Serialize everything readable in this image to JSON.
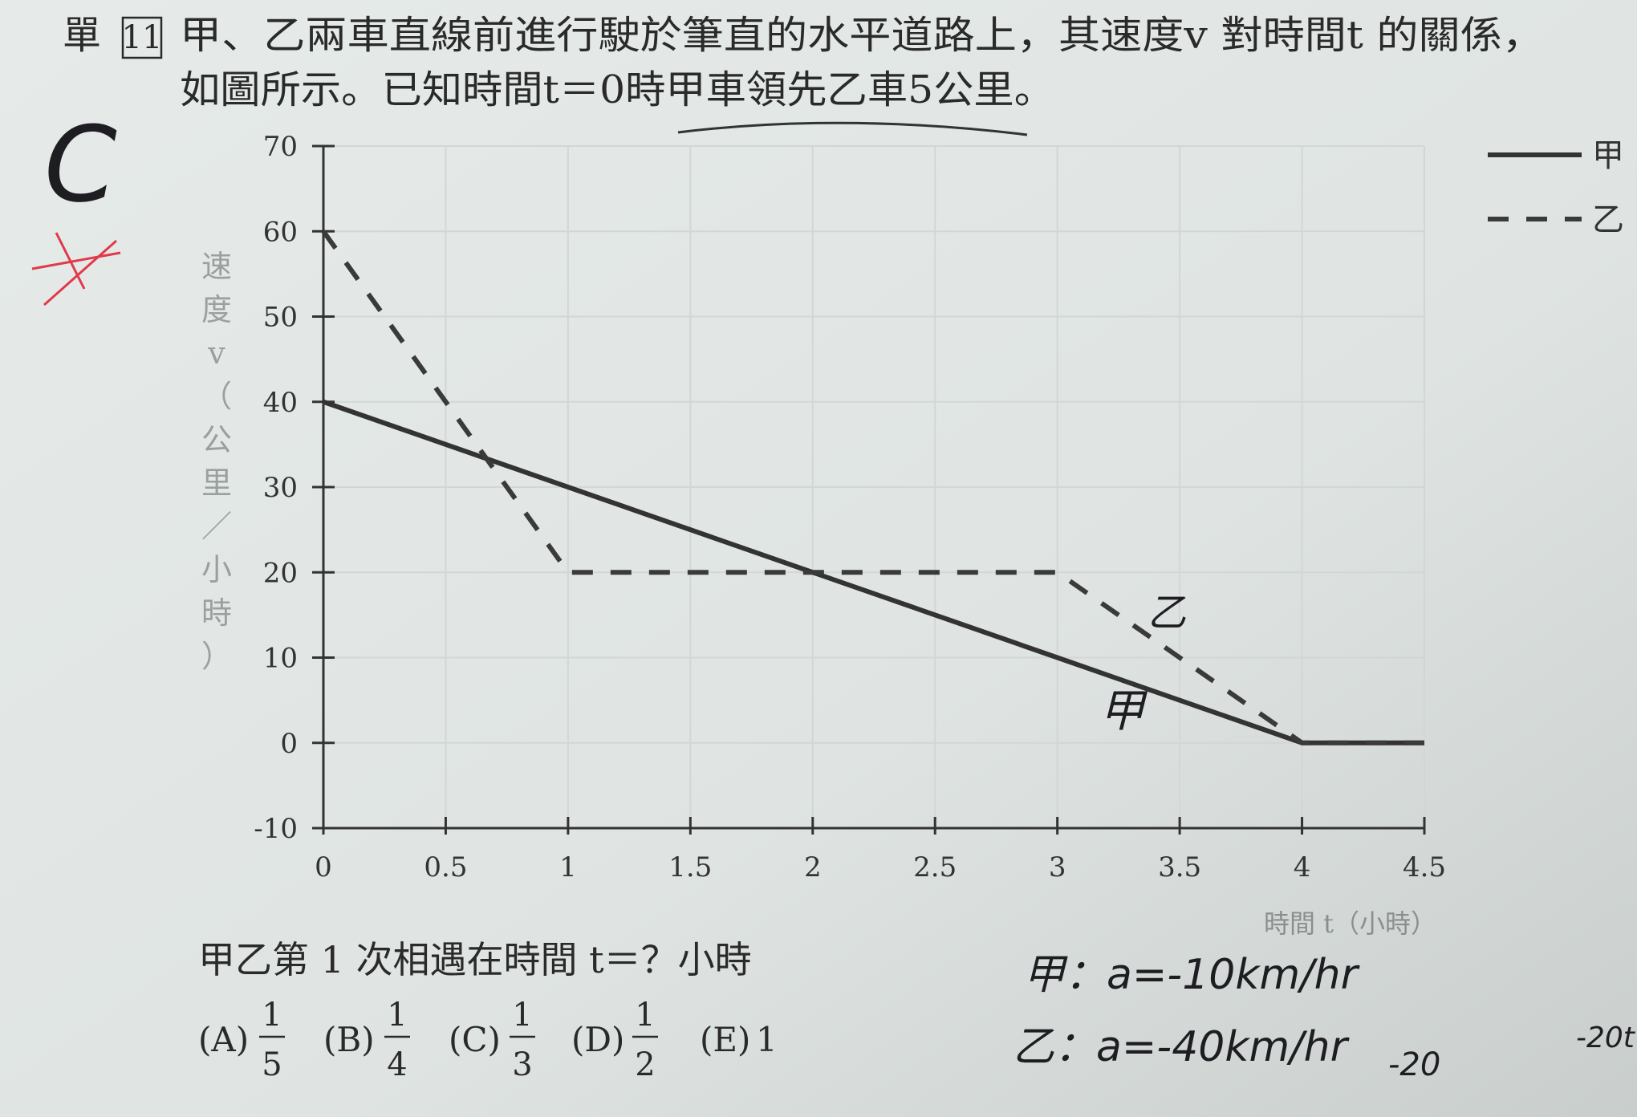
{
  "header": {
    "tag": "單",
    "number": "11",
    "lines": [
      "甲、乙兩車直線前進行駛於筆直的水平道路上，其速度v 對時間t 的關係，",
      "如圖所示。已知時間t＝0時甲車領先乙車5公里。"
    ]
  },
  "chart_data": {
    "type": "line",
    "ylabel": [
      "速",
      "度",
      "v",
      "（",
      "公",
      "里",
      "／",
      "小",
      "時",
      "）"
    ],
    "xlabel": "時間 t（小時）",
    "x": [
      0,
      1,
      2,
      3,
      4,
      4.5
    ],
    "series": [
      {
        "name": "甲",
        "color": "#333333",
        "style": "solid",
        "values": [
          40,
          30,
          20,
          10,
          0,
          0
        ]
      },
      {
        "name": "乙",
        "color": "#3a3a3a",
        "style": "dashed",
        "values": [
          60,
          20,
          20,
          20,
          0,
          0
        ]
      }
    ],
    "xlim": [
      0,
      4.5
    ],
    "xticks": [
      0,
      0.5,
      1,
      1.5,
      2,
      2.5,
      3,
      3.5,
      4,
      4.5
    ],
    "ylim": [
      -10,
      70
    ],
    "yticks": [
      -10,
      0,
      10,
      20,
      30,
      40,
      50,
      60,
      70
    ],
    "grid": true,
    "legend": "top-right",
    "annotations": [
      "乙",
      "甲"
    ]
  },
  "question": {
    "text": "甲乙第 1 次相遇在時間 t＝？小時",
    "options": [
      {
        "label": "(A)",
        "numerator": "1",
        "denominator": "5"
      },
      {
        "label": "(B)",
        "numerator": "1",
        "denominator": "4"
      },
      {
        "label": "(C)",
        "numerator": "1",
        "denominator": "3"
      },
      {
        "label": "(D)",
        "numerator": "1",
        "denominator": "2"
      },
      {
        "label": "(E)",
        "text": "1"
      }
    ]
  },
  "handwriting": [
    "C",
    "甲：a=-10km/hr",
    "乙：a=-40km/hr",
    "-20",
    "-20t"
  ]
}
